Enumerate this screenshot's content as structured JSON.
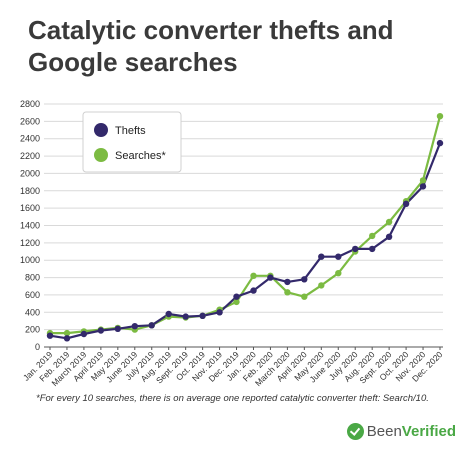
{
  "title": "Catalytic converter thefts and Google searches",
  "footnote": "*For every 10 searches, there is on average one reported catalytic converter theft: Search/10.",
  "brand": {
    "part1": "Been",
    "part2": "Verified"
  },
  "colors": {
    "thefts": "#33296b",
    "searches": "#7cbb42",
    "grid": "#d9d9d9",
    "axis": "#555555"
  },
  "chart_data": {
    "type": "line",
    "title": "Catalytic converter thefts and Google searches",
    "xlabel": "",
    "ylabel": "",
    "ylim": [
      0,
      2800
    ],
    "yticks": [
      0,
      200,
      400,
      600,
      800,
      1000,
      1200,
      1400,
      1600,
      1800,
      2000,
      2200,
      2400,
      2600,
      2800
    ],
    "grid": true,
    "legend_position": "top-left",
    "categories": [
      "Jan. 2019",
      "Feb. 2019",
      "March 2019",
      "April 2019",
      "May 2019",
      "June 2019",
      "July 2019",
      "Aug. 2019",
      "Sept. 2019",
      "Oct. 2019",
      "Nov. 2019",
      "Dec. 2019",
      "Jan. 2020",
      "Feb. 2020",
      "March 2020",
      "April 2020",
      "May 2020",
      "June 2020",
      "July 2020",
      "Aug. 2020",
      "Sept. 2020",
      "Oct. 2020",
      "Nov. 2020",
      "Dec. 2020"
    ],
    "series": [
      {
        "name": "Thefts",
        "color": "#33296b",
        "values": [
          130,
          100,
          150,
          190,
          210,
          240,
          250,
          380,
          350,
          360,
          400,
          580,
          650,
          800,
          750,
          780,
          1040,
          1040,
          1130,
          1130,
          1270,
          1650,
          1850,
          2350
        ]
      },
      {
        "name": "Searches*",
        "color": "#7cbb42",
        "values": [
          160,
          160,
          180,
          200,
          220,
          200,
          250,
          350,
          340,
          360,
          430,
          520,
          820,
          820,
          630,
          580,
          710,
          850,
          1100,
          1280,
          1440,
          1680,
          1920,
          2660
        ]
      }
    ]
  }
}
